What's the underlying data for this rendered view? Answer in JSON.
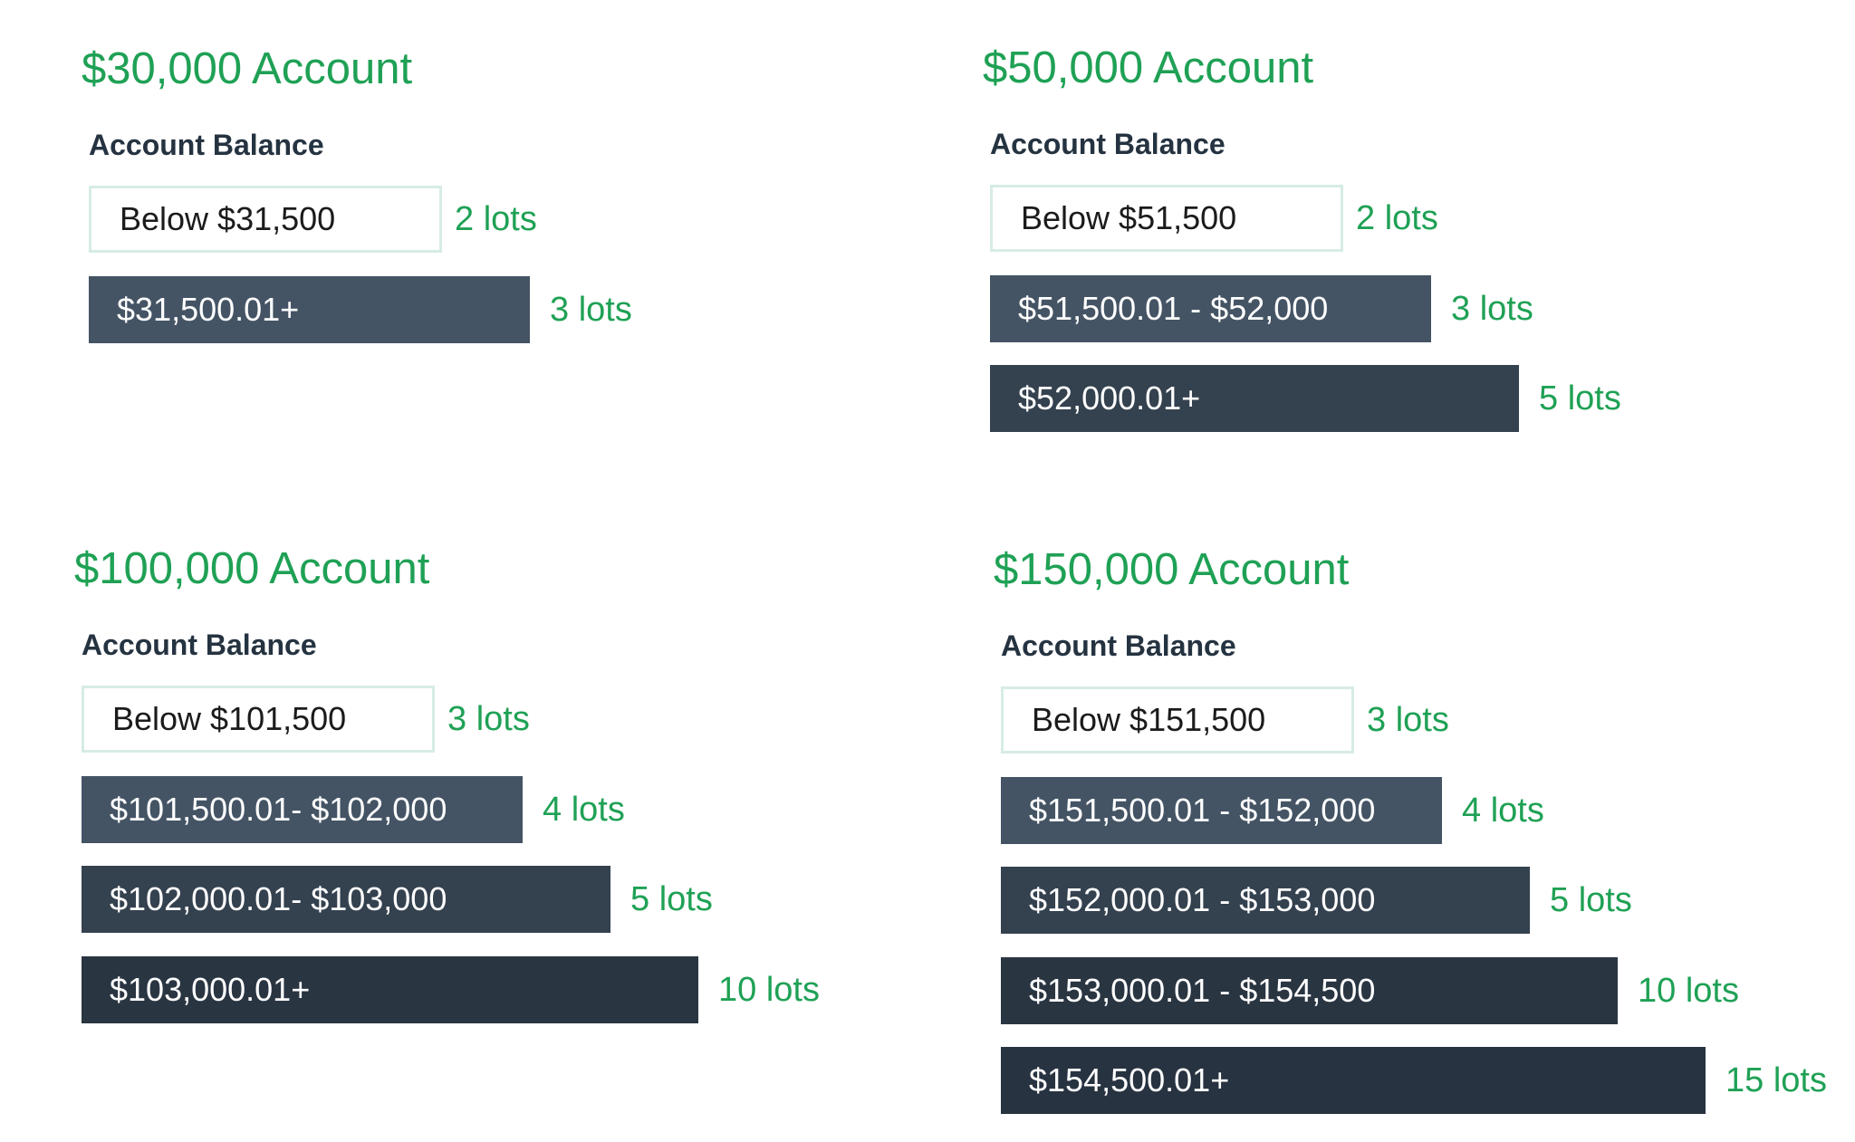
{
  "colors": {
    "accent_green": "#1fa155",
    "heading_dark": "#253341",
    "first_tier_border": "#d6ece5",
    "tier_shades": [
      "#445465",
      "#34414f",
      "#2a3542",
      "#283341"
    ]
  },
  "chart_data": [
    {
      "type": "bar",
      "title": "$30,000 Account",
      "subtitle": "Account Balance",
      "categories": [
        "Below $31,500",
        "$31,500.01+"
      ],
      "value_labels": [
        "2 lots",
        "3 lots"
      ],
      "values": [
        2,
        3
      ]
    },
    {
      "type": "bar",
      "title": "$50,000 Account",
      "subtitle": "Account Balance",
      "categories": [
        "Below $51,500",
        "$51,500.01 - $52,000",
        "$52,000.01+"
      ],
      "value_labels": [
        "2 lots",
        "3 lots",
        "5 lots"
      ],
      "values": [
        2,
        3,
        5
      ]
    },
    {
      "type": "bar",
      "title": "$100,000 Account",
      "subtitle": "Account Balance",
      "categories": [
        "Below $101,500",
        "$101,500.01- $102,000",
        "$102,000.01- $103,000",
        "$103,000.01+"
      ],
      "value_labels": [
        "3 lots",
        "4 lots",
        "5 lots",
        "10 lots"
      ],
      "values": [
        3,
        4,
        5,
        10
      ]
    },
    {
      "type": "bar",
      "title": "$150,000 Account",
      "subtitle": "Account Balance",
      "categories": [
        "Below $151,500",
        "$151,500.01 - $152,000",
        "$152,000.01 - $153,000",
        "$153,000.01 - $154,500",
        "$154,500.01+"
      ],
      "value_labels": [
        "3 lots",
        "4 lots",
        "5 lots",
        "10 lots",
        "15 lots"
      ],
      "values": [
        3,
        4,
        5,
        10,
        15
      ]
    }
  ]
}
